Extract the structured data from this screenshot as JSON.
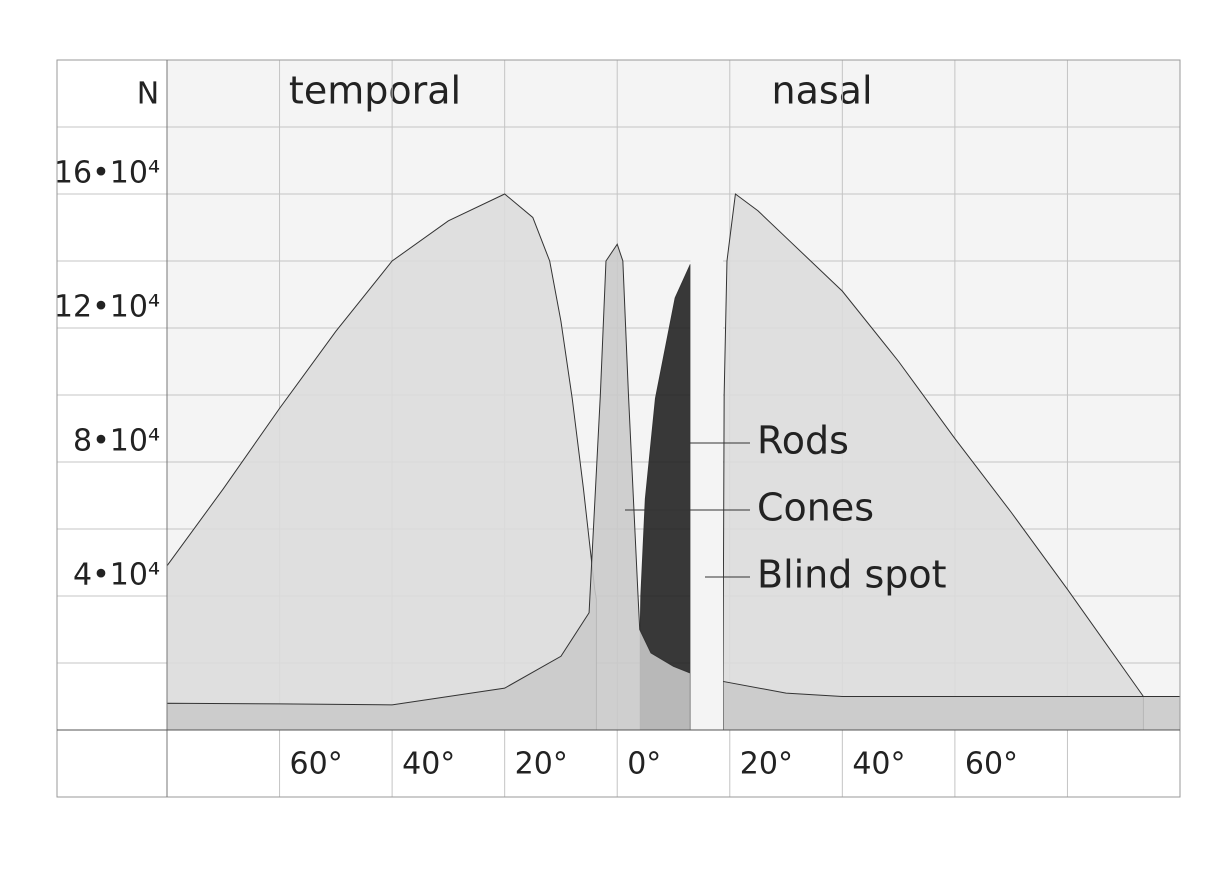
{
  "chart_data": {
    "type": "area",
    "y_axis_label": "N",
    "region_labels": [
      "temporal",
      "nasal"
    ],
    "xlim": [
      -80,
      100
    ],
    "ylim": [
      -20000,
      200000
    ],
    "xticks": [
      {
        "value": -60,
        "label": "60°"
      },
      {
        "value": -40,
        "label": "40°"
      },
      {
        "value": -20,
        "label": "20°"
      },
      {
        "value": 0,
        "label": "0°"
      },
      {
        "value": 20,
        "label": "20°"
      },
      {
        "value": 40,
        "label": "40°"
      },
      {
        "value": 60,
        "label": "60°"
      }
    ],
    "xgrid": [
      -80,
      80,
      100
    ],
    "yticks": [
      {
        "value": 40000,
        "label": "4•10⁴"
      },
      {
        "value": 80000,
        "label": "8•10⁴"
      },
      {
        "value": 120000,
        "label": "12•10⁴"
      },
      {
        "value": 160000,
        "label": "16•10⁴"
      }
    ],
    "ygrid": [
      0,
      20000,
      60000,
      100000,
      140000,
      180000
    ],
    "grid": true,
    "series": [
      {
        "name": "Rods",
        "color": "#dcdcdc",
        "x": [
          -80,
          -70,
          -60,
          -50,
          -40,
          -30,
          -20,
          -15,
          -12,
          -10,
          -8,
          -6,
          -5,
          -4,
          -3.7,
          10,
          18.8,
          19,
          19.5,
          21,
          25,
          30,
          40,
          50,
          60,
          70,
          80,
          93.5
        ],
        "values": [
          49000,
          72000,
          96000,
          119000,
          140000,
          152000,
          160000,
          153000,
          140000,
          122000,
          99000,
          72000,
          57000,
          42000,
          39000,
          null,
          15000,
          100000,
          140000,
          160000,
          155000,
          147000,
          131000,
          110000,
          87000,
          65000,
          42000,
          10000
        ]
      },
      {
        "color": "#1e1e1e",
        "x": [
          4.1,
          4.2,
          5,
          6.8,
          10.3,
          13
        ],
        "values": [
          30000,
          40000,
          69000,
          99000,
          129000,
          139000
        ]
      },
      {
        "name": "Cones",
        "color": "#c9c9c9",
        "x": [
          -80,
          -60,
          -40,
          -20,
          -10,
          -5,
          -3,
          -2,
          0,
          1,
          2,
          3.7,
          4,
          6,
          10,
          13,
          16,
          18.8,
          30,
          40,
          60,
          100
        ],
        "values": [
          8000,
          7800,
          7500,
          12500,
          22000,
          35000,
          100000,
          140000,
          145000,
          140000,
          100000,
          40000,
          30000,
          23000,
          19000,
          17000,
          null,
          14500,
          11000,
          10000,
          10000,
          10000
        ]
      },
      {
        "name": "Blind spot",
        "color": "#f4f4f4",
        "x": [
          13,
          18.8
        ]
      }
    ]
  }
}
